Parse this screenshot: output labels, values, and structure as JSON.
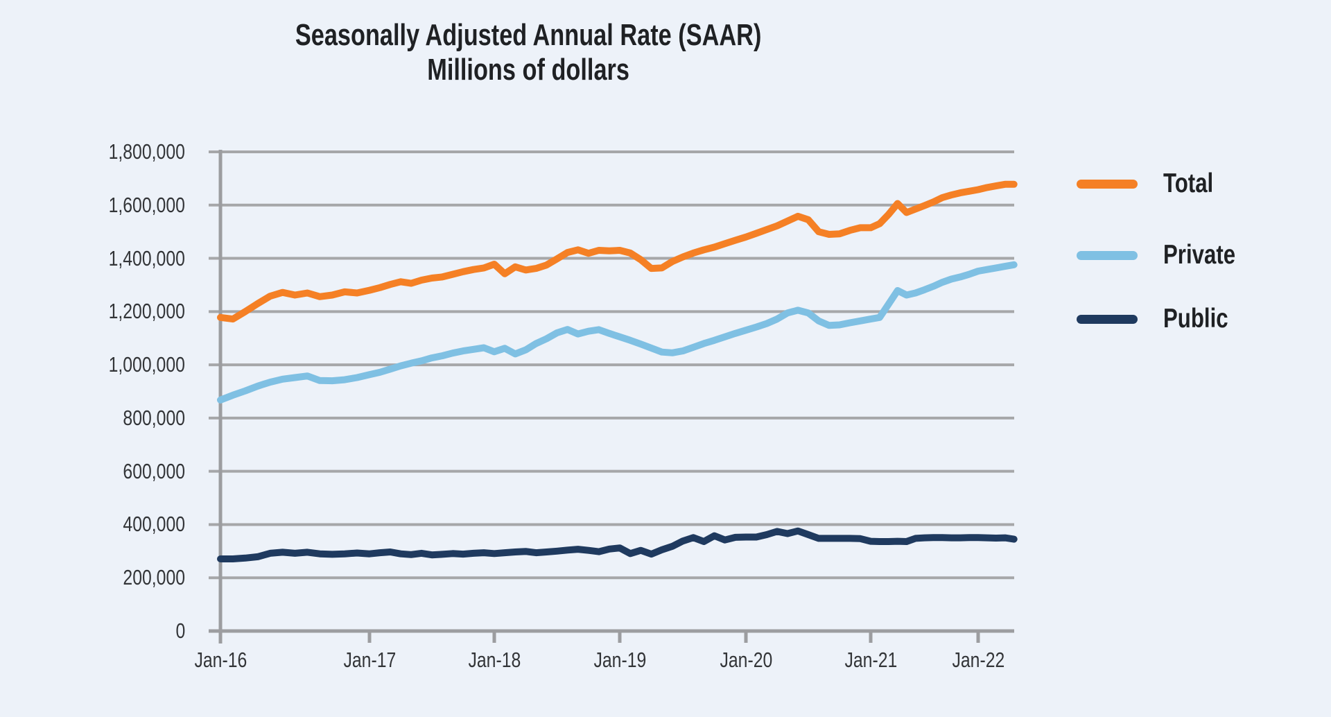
{
  "title": {
    "line1": "Seasonally Adjusted Annual Rate (SAAR)",
    "line2": "Millions of dollars"
  },
  "colors": {
    "background": "#EDF2F9",
    "gridline": "#A6A7A9",
    "axis": "#9C9DA0",
    "title_text": "#1F2124",
    "axis_text": "#333538",
    "total_line": "#F58025",
    "private_line": "#7FC0E3",
    "public_line": "#1F3A5F"
  },
  "chart_data": {
    "type": "line",
    "title": "Seasonally Adjusted Annual Rate (SAAR)",
    "subtitle": "Millions of dollars",
    "unit": "millions of dollars",
    "frequency": "monthly",
    "x_start": "Jan-16",
    "x_end": "May-22",
    "x_tick_labels": [
      "Jan-16",
      "Jan-17",
      "Jan-18",
      "Jan-19",
      "Jan-20",
      "Jan-21",
      "Jan-22"
    ],
    "ylim": [
      0,
      1800000
    ],
    "y_ticks": [
      0,
      200000,
      400000,
      600000,
      800000,
      1000000,
      1200000,
      1400000,
      1600000,
      1800000
    ],
    "grid": "horizontal",
    "legend_position": "right-top",
    "series": [
      {
        "name": "Total",
        "color": "#F58025",
        "values": [
          1178000,
          1172000,
          1200000,
          1230000,
          1258000,
          1272000,
          1262000,
          1270000,
          1256000,
          1262000,
          1274000,
          1270000,
          1280000,
          1290000,
          1302000,
          1312000,
          1306000,
          1318000,
          1326000,
          1330000,
          1340000,
          1350000,
          1358000,
          1364000,
          1378000,
          1342000,
          1368000,
          1356000,
          1362000,
          1375000,
          1398000,
          1422000,
          1432000,
          1419000,
          1430000,
          1428000,
          1430000,
          1420000,
          1395000,
          1362000,
          1364000,
          1388000,
          1405000,
          1420000,
          1432000,
          1442000,
          1455000,
          1468000,
          1480000,
          1494000,
          1508000,
          1522000,
          1540000,
          1558000,
          1545000,
          1500000,
          1490000,
          1492000,
          1505000,
          1515000,
          1515000,
          1530000,
          1565000,
          1606000,
          1572000,
          1585000,
          1598000,
          1612000,
          1628000,
          1638000,
          1646000,
          1652000,
          1658000,
          1666000,
          1672000,
          1678000,
          1678000
        ]
      },
      {
        "name": "Private",
        "color": "#7FC0E3",
        "values": [
          868000,
          886000,
          902000,
          920000,
          935000,
          946000,
          952000,
          958000,
          941000,
          940000,
          944000,
          952000,
          963000,
          972000,
          984000,
          996000,
          1006000,
          1015000,
          1026000,
          1034000,
          1044000,
          1052000,
          1058000,
          1064000,
          1049000,
          1062000,
          1041000,
          1056000,
          1080000,
          1098000,
          1120000,
          1133000,
          1116000,
          1126000,
          1132000,
          1118000,
          1105000,
          1092000,
          1078000,
          1063000,
          1048000,
          1045000,
          1052000,
          1066000,
          1080000,
          1092000,
          1105000,
          1118000,
          1130000,
          1142000,
          1155000,
          1172000,
          1195000,
          1205000,
          1195000,
          1165000,
          1148000,
          1150000,
          1158000,
          1165000,
          1172000,
          1178000,
          1228000,
          1279000,
          1262000,
          1270000,
          1282000,
          1295000,
          1310000,
          1322000,
          1330000,
          1340000,
          1352000,
          1358000,
          1364000,
          1370000,
          1376000
        ]
      },
      {
        "name": "Public",
        "color": "#1F3A5F",
        "values": [
          271000,
          271000,
          274000,
          279000,
          292000,
          296000,
          292000,
          296000,
          290000,
          288000,
          290000,
          293000,
          290000,
          294000,
          297000,
          290000,
          287000,
          292000,
          286000,
          288000,
          291000,
          289000,
          292000,
          294000,
          291000,
          294000,
          297000,
          299000,
          294000,
          297000,
          300000,
          304000,
          307000,
          303000,
          298000,
          308000,
          312000,
          291000,
          303000,
          289000,
          305000,
          318000,
          338000,
          351000,
          336000,
          358000,
          342000,
          352000,
          353000,
          353000,
          362000,
          374000,
          366000,
          376000,
          362000,
          348000,
          348000,
          348000,
          348000,
          347000,
          337000,
          336000,
          336000,
          337000,
          336000,
          348000,
          350000,
          351000,
          351000,
          350000,
          350000,
          351000,
          351000,
          350000,
          349000,
          350000,
          345000
        ]
      }
    ]
  }
}
